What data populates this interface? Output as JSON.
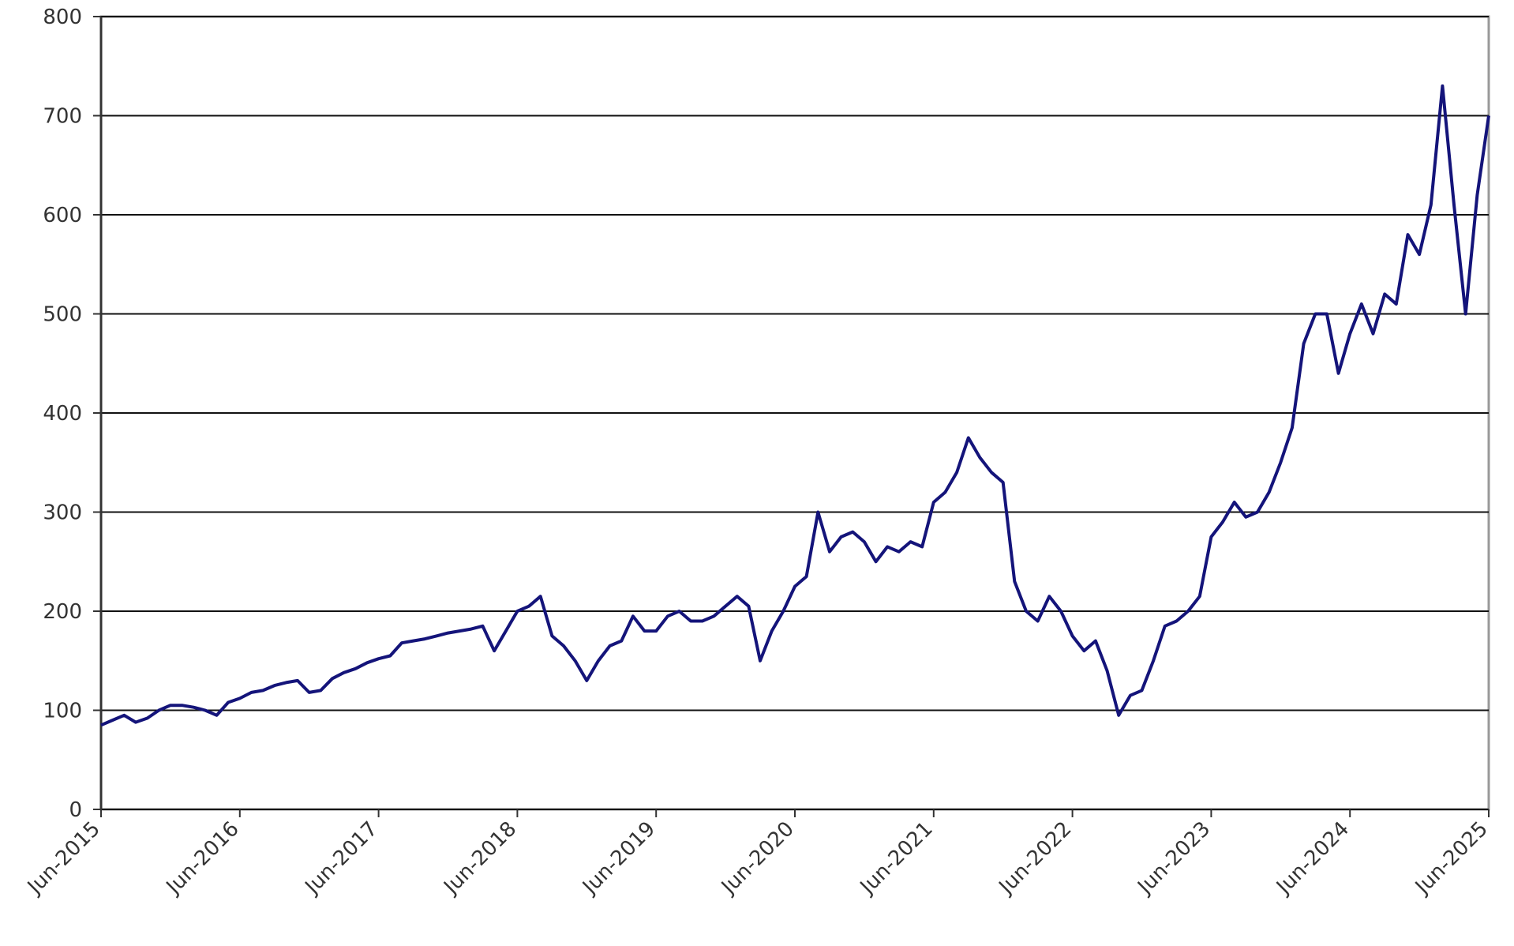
{
  "chart_data": {
    "type": "line",
    "x": [
      "2015-06",
      "2015-07",
      "2015-08",
      "2015-09",
      "2015-10",
      "2015-11",
      "2015-12",
      "2016-01",
      "2016-02",
      "2016-03",
      "2016-04",
      "2016-05",
      "2016-06",
      "2016-07",
      "2016-08",
      "2016-09",
      "2016-10",
      "2016-11",
      "2016-12",
      "2017-01",
      "2017-02",
      "2017-03",
      "2017-04",
      "2017-05",
      "2017-06",
      "2017-07",
      "2017-08",
      "2017-09",
      "2017-10",
      "2017-11",
      "2017-12",
      "2018-01",
      "2018-02",
      "2018-03",
      "2018-04",
      "2018-05",
      "2018-06",
      "2018-07",
      "2018-08",
      "2018-09",
      "2018-10",
      "2018-11",
      "2018-12",
      "2019-01",
      "2019-02",
      "2019-03",
      "2019-04",
      "2019-05",
      "2019-06",
      "2019-07",
      "2019-08",
      "2019-09",
      "2019-10",
      "2019-11",
      "2019-12",
      "2020-01",
      "2020-02",
      "2020-03",
      "2020-04",
      "2020-05",
      "2020-06",
      "2020-07",
      "2020-08",
      "2020-09",
      "2020-10",
      "2020-11",
      "2020-12",
      "2021-01",
      "2021-02",
      "2021-03",
      "2021-04",
      "2021-05",
      "2021-06",
      "2021-07",
      "2021-08",
      "2021-09",
      "2021-10",
      "2021-11",
      "2021-12",
      "2022-01",
      "2022-02",
      "2022-03",
      "2022-04",
      "2022-05",
      "2022-06",
      "2022-07",
      "2022-08",
      "2022-09",
      "2022-10",
      "2022-11",
      "2022-12",
      "2023-01",
      "2023-02",
      "2023-03",
      "2023-04",
      "2023-05",
      "2023-06",
      "2023-07",
      "2023-08",
      "2023-09",
      "2023-10",
      "2023-11",
      "2023-12",
      "2024-01",
      "2024-02",
      "2024-03",
      "2024-04",
      "2024-05",
      "2024-06",
      "2024-07",
      "2024-08",
      "2024-09",
      "2024-10",
      "2024-11",
      "2024-12",
      "2025-01",
      "2025-02",
      "2025-03",
      "2025-04",
      "2025-05",
      "2025-06"
    ],
    "series": [
      {
        "color": "#14147a",
        "values": [
          85,
          90,
          95,
          88,
          92,
          100,
          105,
          105,
          103,
          100,
          95,
          108,
          112,
          118,
          120,
          125,
          128,
          130,
          118,
          120,
          132,
          138,
          142,
          148,
          152,
          155,
          168,
          170,
          172,
          175,
          178,
          180,
          182,
          185,
          160,
          180,
          200,
          205,
          215,
          175,
          165,
          150,
          130,
          150,
          165,
          170,
          195,
          180,
          180,
          195,
          200,
          190,
          190,
          195,
          205,
          215,
          205,
          150,
          180,
          200,
          225,
          235,
          300,
          260,
          275,
          280,
          270,
          250,
          265,
          260,
          270,
          265,
          310,
          320,
          340,
          375,
          355,
          340,
          330,
          230,
          200,
          190,
          215,
          200,
          175,
          160,
          170,
          140,
          95,
          115,
          120,
          150,
          185,
          190,
          200,
          215,
          275,
          290,
          310,
          295,
          300,
          320,
          350,
          385,
          470,
          500,
          500,
          440,
          480,
          510,
          480,
          520,
          510,
          580,
          560,
          610,
          730,
          610,
          500,
          620,
          700
        ]
      }
    ],
    "xlim": [
      "2015-06",
      "2025-06"
    ],
    "xticks": [
      {
        "value": "2015-06",
        "label": "Jun-2015"
      },
      {
        "value": "2016-06",
        "label": "Jun-2016"
      },
      {
        "value": "2017-06",
        "label": "Jun-2017"
      },
      {
        "value": "2018-06",
        "label": "Jun-2018"
      },
      {
        "value": "2019-06",
        "label": "Jun-2019"
      },
      {
        "value": "2020-06",
        "label": "Jun-2020"
      },
      {
        "value": "2021-06",
        "label": "Jun-2021"
      },
      {
        "value": "2022-06",
        "label": "Jun-2022"
      },
      {
        "value": "2023-06",
        "label": "Jun-2023"
      },
      {
        "value": "2024-06",
        "label": "Jun-2024"
      },
      {
        "value": "2025-06",
        "label": "Jun-2025"
      }
    ],
    "ylim": [
      0,
      800
    ],
    "yticks": [
      0,
      100,
      200,
      300,
      400,
      500,
      600,
      700,
      800
    ],
    "grid": true
  }
}
